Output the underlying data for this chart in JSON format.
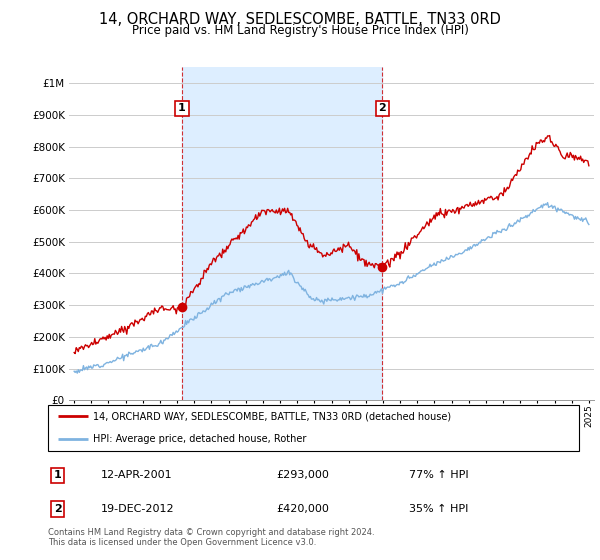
{
  "title": "14, ORCHARD WAY, SEDLESCOMBE, BATTLE, TN33 0RD",
  "subtitle": "Price paid vs. HM Land Registry's House Price Index (HPI)",
  "ytick_values": [
    0,
    100000,
    200000,
    300000,
    400000,
    500000,
    600000,
    700000,
    800000,
    900000,
    1000000
  ],
  "ylim": [
    0,
    1050000
  ],
  "xlim_start": 1994.7,
  "xlim_end": 2025.3,
  "hpi_color": "#7fb3e0",
  "price_color": "#cc0000",
  "shade_color": "#ddeeff",
  "grid_color": "#cccccc",
  "background_color": "#ffffff",
  "plot_bg_color": "#f8f8f8",
  "transaction1_x": 2001.28,
  "transaction1_y": 293000,
  "transaction2_x": 2012.97,
  "transaction2_y": 420000,
  "transaction1_date": "12-APR-2001",
  "transaction1_price": "£293,000",
  "transaction1_pct": "77% ↑ HPI",
  "transaction2_date": "19-DEC-2012",
  "transaction2_price": "£420,000",
  "transaction2_pct": "35% ↑ HPI",
  "legend_label_red": "14, ORCHARD WAY, SEDLESCOMBE, BATTLE, TN33 0RD (detached house)",
  "legend_label_blue": "HPI: Average price, detached house, Rother",
  "footer": "Contains HM Land Registry data © Crown copyright and database right 2024.\nThis data is licensed under the Open Government Licence v3.0.",
  "xtick_years": [
    1995,
    1996,
    1997,
    1998,
    1999,
    2000,
    2001,
    2002,
    2003,
    2004,
    2005,
    2006,
    2007,
    2008,
    2009,
    2010,
    2011,
    2012,
    2013,
    2014,
    2015,
    2016,
    2017,
    2018,
    2019,
    2020,
    2021,
    2022,
    2023,
    2024,
    2025
  ]
}
